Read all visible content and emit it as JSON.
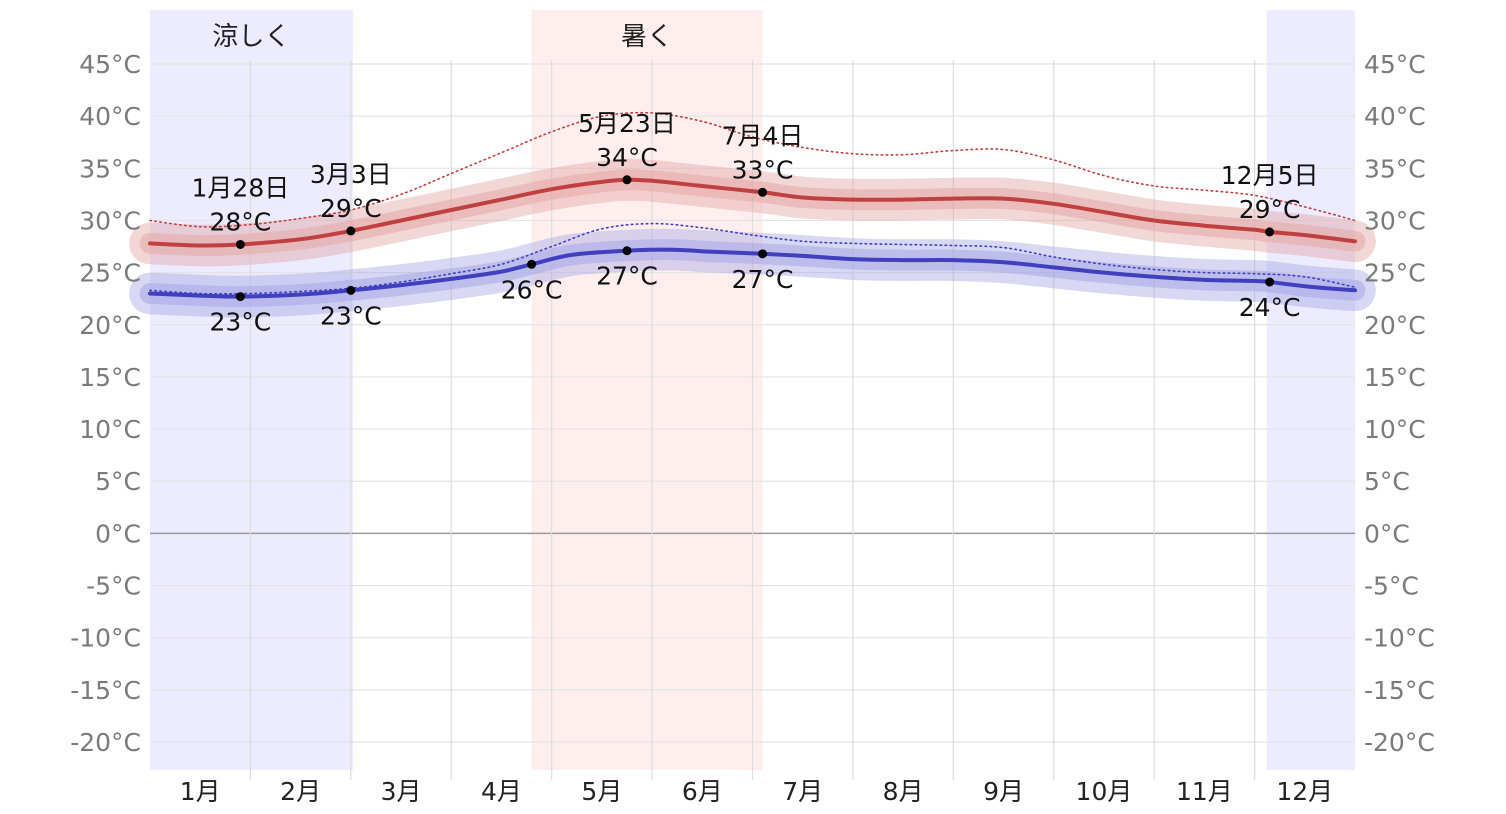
{
  "chart_data": {
    "type": "line",
    "title": "",
    "xlabel": "",
    "ylabel": "",
    "ylim": [
      -22.5,
      47.5
    ],
    "y_ticks": [
      {
        "value": 45,
        "label": "45°C"
      },
      {
        "value": 40,
        "label": "40°C"
      },
      {
        "value": 35,
        "label": "35°C"
      },
      {
        "value": 30,
        "label": "30°C"
      },
      {
        "value": 25,
        "label": "25°C"
      },
      {
        "value": 20,
        "label": "20°C"
      },
      {
        "value": 15,
        "label": "15°C"
      },
      {
        "value": 10,
        "label": "10°C"
      },
      {
        "value": 5,
        "label": "5°C"
      },
      {
        "value": 0,
        "label": "0°C"
      },
      {
        "value": -5,
        "label": "-5°C"
      },
      {
        "value": -10,
        "label": "-10°C"
      },
      {
        "value": -15,
        "label": "-15°C"
      },
      {
        "value": -20,
        "label": "-20°C"
      }
    ],
    "months": [
      "1月",
      "2月",
      "3月",
      "4月",
      "5月",
      "6月",
      "7月",
      "8月",
      "9月",
      "10月",
      "11月",
      "12月"
    ],
    "grid": true,
    "seasons": [
      {
        "label": "涼しく",
        "start": 0.0,
        "end": 2.02,
        "color": "#ecebff"
      },
      {
        "label": "暑く",
        "start": 3.8,
        "end": 6.1,
        "color": "#ffeeee"
      },
      {
        "label": "",
        "start": 11.12,
        "end": 12.0,
        "color": "#ecebff"
      }
    ],
    "series": [
      {
        "kind": "high",
        "color": "#c0403f",
        "band_color": "#e3a7a6",
        "x": [
          0.0,
          0.5,
          0.9,
          1.5,
          2.0,
          2.5,
          3.0,
          3.5,
          4.0,
          4.5,
          4.75,
          5.0,
          5.5,
          6.1,
          6.5,
          7.0,
          7.5,
          8.0,
          8.5,
          9.0,
          9.5,
          10.0,
          10.5,
          11.0,
          11.15,
          11.5,
          12.0
        ],
        "values": [
          27.8,
          27.6,
          27.7,
          28.2,
          29.0,
          30.0,
          31.0,
          32.0,
          33.0,
          33.7,
          33.9,
          33.8,
          33.3,
          32.7,
          32.2,
          32.0,
          32.0,
          32.1,
          32.1,
          31.6,
          30.8,
          30.0,
          29.5,
          29.1,
          28.9,
          28.6,
          28.0
        ]
      },
      {
        "kind": "low",
        "color": "#3f3fbf",
        "band_color": "#a8a8e6",
        "x": [
          0.0,
          0.5,
          0.9,
          1.5,
          2.0,
          2.5,
          3.0,
          3.5,
          3.8,
          4.2,
          4.75,
          5.2,
          5.6,
          6.1,
          6.5,
          7.0,
          7.5,
          8.0,
          8.5,
          9.0,
          9.5,
          10.0,
          10.5,
          11.0,
          11.15,
          11.5,
          12.0
        ],
        "values": [
          23.0,
          22.8,
          22.7,
          22.9,
          23.3,
          23.8,
          24.4,
          25.1,
          25.8,
          26.7,
          27.1,
          27.2,
          27.0,
          26.8,
          26.6,
          26.3,
          26.2,
          26.2,
          26.0,
          25.5,
          25.0,
          24.6,
          24.3,
          24.2,
          24.1,
          23.7,
          23.3
        ]
      },
      {
        "kind": "high-percentile",
        "color": "#c0403f",
        "dotted": true,
        "x": [
          0.0,
          0.5,
          1.0,
          1.5,
          2.0,
          2.5,
          3.0,
          3.5,
          4.0,
          4.5,
          5.0,
          5.5,
          6.0,
          6.5,
          7.0,
          7.5,
          8.0,
          8.5,
          9.0,
          9.5,
          10.0,
          10.5,
          11.0,
          11.5,
          12.0
        ],
        "values": [
          30.0,
          29.4,
          29.6,
          30.2,
          31.0,
          32.5,
          34.5,
          36.5,
          38.5,
          40.0,
          40.3,
          39.5,
          38.0,
          37.0,
          36.4,
          36.3,
          36.7,
          36.8,
          35.8,
          34.3,
          33.3,
          32.9,
          32.4,
          31.3,
          30.0
        ]
      },
      {
        "kind": "low-percentile",
        "color": "#3f3fbf",
        "dotted": true,
        "x": [
          0.0,
          0.5,
          1.0,
          1.5,
          2.0,
          2.5,
          3.0,
          3.5,
          4.0,
          4.5,
          5.0,
          5.5,
          6.0,
          6.5,
          7.0,
          7.5,
          8.0,
          8.5,
          9.0,
          9.5,
          10.0,
          10.5,
          11.0,
          11.5,
          12.0
        ],
        "values": [
          23.3,
          23.0,
          23.0,
          23.2,
          23.5,
          24.1,
          24.9,
          25.8,
          27.5,
          29.2,
          29.7,
          29.3,
          28.6,
          28.0,
          27.8,
          27.7,
          27.6,
          27.4,
          26.5,
          25.8,
          25.3,
          25.0,
          24.9,
          24.6,
          23.6
        ]
      }
    ],
    "annotations": [
      {
        "x": 0.9,
        "y": 27.7,
        "date": "1月28日",
        "value": "28°C",
        "pos": "above"
      },
      {
        "x": 2.0,
        "y": 29.0,
        "date": "3月3日",
        "value": "29°C",
        "pos": "above"
      },
      {
        "x": 4.75,
        "y": 33.9,
        "date": "5月23日",
        "value": "34°C",
        "pos": "above"
      },
      {
        "x": 6.1,
        "y": 32.7,
        "date": "7月4日",
        "value": "33°C",
        "pos": "above"
      },
      {
        "x": 11.15,
        "y": 28.9,
        "date": "12月5日",
        "value": "29°C",
        "pos": "above"
      },
      {
        "x": 0.9,
        "y": 22.7,
        "date": "",
        "value": "23°C",
        "pos": "below"
      },
      {
        "x": 2.0,
        "y": 23.3,
        "date": "",
        "value": "23°C",
        "pos": "below"
      },
      {
        "x": 3.8,
        "y": 25.8,
        "date": "",
        "value": "26°C",
        "pos": "below"
      },
      {
        "x": 4.75,
        "y": 27.1,
        "date": "",
        "value": "27°C",
        "pos": "below"
      },
      {
        "x": 6.1,
        "y": 26.8,
        "date": "",
        "value": "27°C",
        "pos": "below"
      },
      {
        "x": 11.15,
        "y": 24.1,
        "date": "",
        "value": "24°C",
        "pos": "below"
      }
    ]
  }
}
